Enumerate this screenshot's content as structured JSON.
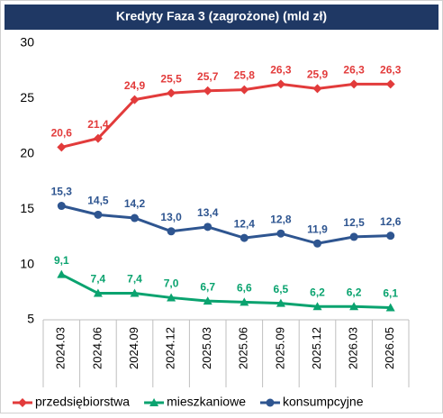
{
  "chart_data": {
    "type": "line",
    "title": "Kredyty Faza 3 (zagrożone) (mld zł)",
    "categories": [
      "2024.03",
      "2024.06",
      "2024.09",
      "2024.12",
      "2025.03",
      "2025.06",
      "2025.09",
      "2025.12",
      "2026.03",
      "2026.05"
    ],
    "series": [
      {
        "name": "przedsiębiorstwa",
        "color": "#e23b3b",
        "marker": "diamond",
        "values": [
          20.6,
          21.4,
          24.9,
          25.5,
          25.7,
          25.8,
          26.3,
          25.9,
          26.3,
          26.3
        ],
        "value_labels": [
          "20,6",
          "21,4",
          "24,9",
          "25,5",
          "25,7",
          "25,8",
          "26,3",
          "25,9",
          "26,3",
          "26,3"
        ]
      },
      {
        "name": "mieszkaniowe",
        "color": "#0aa36f",
        "marker": "triangle",
        "values": [
          9.1,
          7.4,
          7.4,
          7.0,
          6.7,
          6.6,
          6.5,
          6.2,
          6.2,
          6.1
        ],
        "value_labels": [
          "9,1",
          "7,4",
          "7,4",
          "7,0",
          "6,7",
          "6,6",
          "6,5",
          "6,2",
          "6,2",
          "6,1"
        ]
      },
      {
        "name": "konsumpcyjne",
        "color": "#2e5590",
        "marker": "circle",
        "values": [
          15.3,
          14.5,
          14.2,
          13.0,
          13.4,
          12.4,
          12.8,
          11.9,
          12.5,
          12.6
        ],
        "value_labels": [
          "15,3",
          "14,5",
          "14,2",
          "13,0",
          "13,4",
          "12,4",
          "12,8",
          "11,9",
          "12,5",
          "12,6"
        ]
      }
    ],
    "ylim": [
      5,
      30
    ],
    "yticks": [
      5,
      10,
      15,
      20,
      25,
      30
    ],
    "grid": false,
    "legend": "bottom"
  }
}
